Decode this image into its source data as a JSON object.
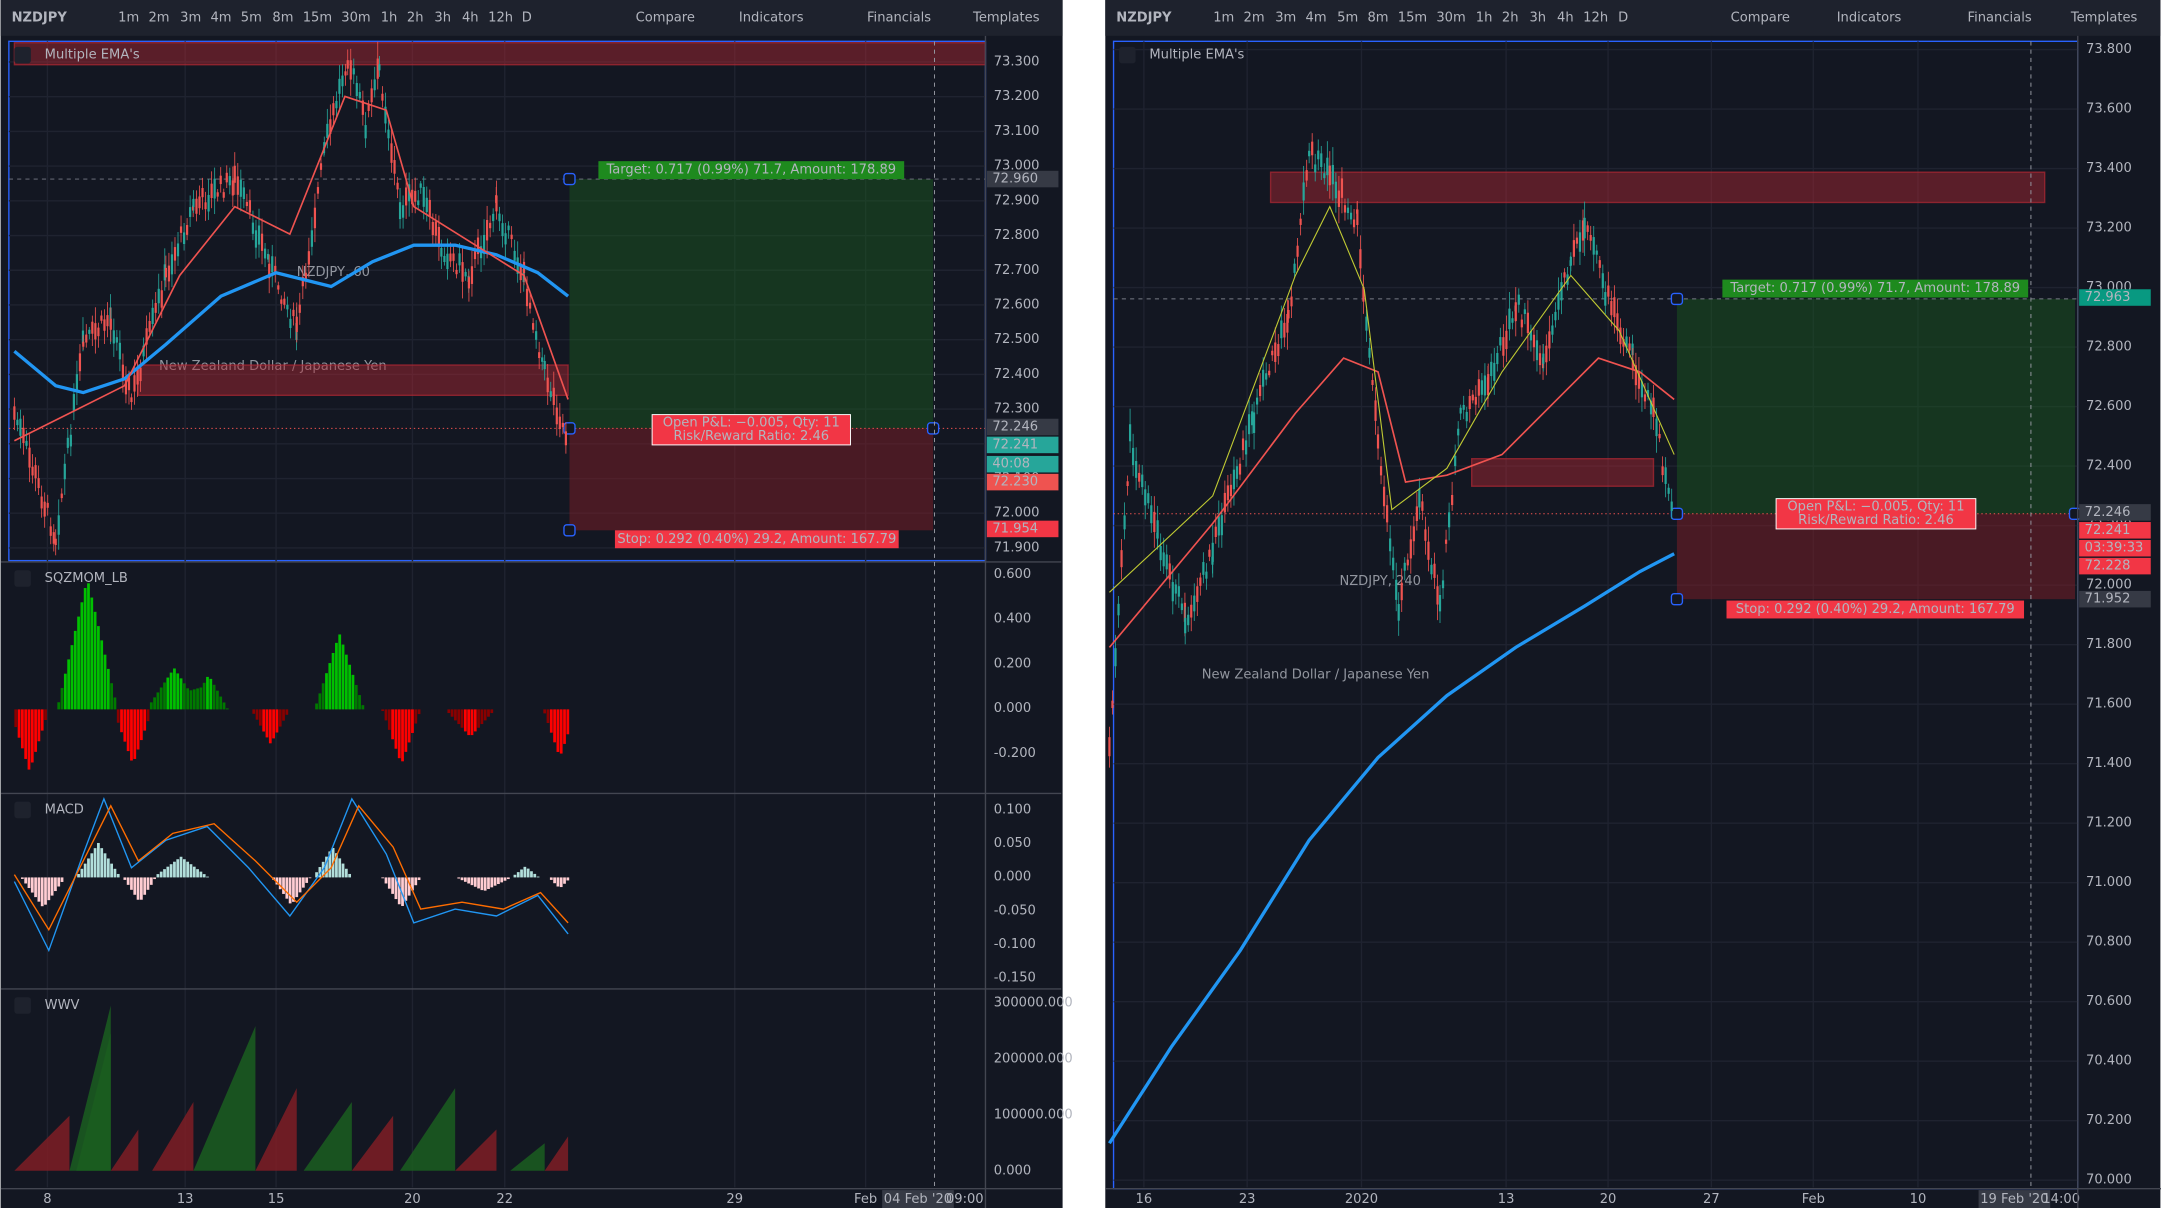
{
  "left": {
    "toolbar": {
      "symbol": "NZDJPY",
      "intervals": [
        "1m",
        "2m",
        "3m",
        "4m",
        "5m",
        "8m",
        "15m",
        "30m",
        "1h",
        "2h",
        "3h",
        "4h",
        "12h",
        "D"
      ],
      "active_interval": "1h",
      "buttons": [
        "Compare",
        "Indicators",
        "Financials",
        "Templates"
      ]
    },
    "main": {
      "label": "Multiple EMA's",
      "watermark": "NZDJPY, 60",
      "subtitle": "New Zealand Dollar / Japanese Yen",
      "price_ticks": [
        "73.300",
        "73.200",
        "73.100",
        "73.000",
        "72.900",
        "72.800",
        "72.700",
        "72.600",
        "72.500",
        "72.400",
        "72.300",
        "72.200",
        "72.100",
        "72.000",
        "71.900"
      ],
      "tags": [
        {
          "label": "72.960",
          "color": "#363a45"
        },
        {
          "label": "72.246",
          "color": "#363a45"
        },
        {
          "label": "72.241",
          "color": "#26a69a"
        },
        {
          "label": "40:08",
          "color": "#26a69a"
        },
        {
          "label": "72.230",
          "color": "#ef5350"
        },
        {
          "label": "71.954",
          "color": "#f23645"
        }
      ],
      "target": "Target: 0.717 (0.99%) 71.7, Amount: 178.89",
      "pnl": [
        "Open P&L: −0.005, Qty: 11",
        "Risk/Reward Ratio: 2.46"
      ],
      "stop": "Stop: 0.292 (0.40%) 29.2, Amount: 167.79"
    },
    "panels": [
      {
        "label": "SQZMOM_LB",
        "ticks": [
          "0.600",
          "0.400",
          "0.200",
          "0.000",
          "-0.200"
        ]
      },
      {
        "label": "MACD",
        "ticks": [
          "0.100",
          "0.050",
          "0.000",
          "-0.050",
          "-0.100",
          "-0.150"
        ]
      },
      {
        "label": "WWV",
        "ticks": [
          "300000.000",
          "200000.000",
          "100000.000",
          "0.000"
        ]
      }
    ],
    "dates": [
      "8",
      "13",
      "15",
      "20",
      "22",
      "29",
      "Feb"
    ],
    "crosshair_date": "04 Feb '20",
    "crosshair_time": "09:00"
  },
  "right": {
    "toolbar": {
      "symbol": "NZDJPY",
      "intervals": [
        "1m",
        "2m",
        "3m",
        "4m",
        "5m",
        "8m",
        "15m",
        "30m",
        "1h",
        "2h",
        "3h",
        "4h",
        "12h",
        "D"
      ],
      "active_interval": "4h",
      "buttons": [
        "Compare",
        "Indicators",
        "Financials",
        "Templates"
      ]
    },
    "main": {
      "label": "Multiple EMA's",
      "watermark": "NZDJPY, 240",
      "subtitle": "New Zealand Dollar / Japanese Yen",
      "price_ticks": [
        "73.800",
        "73.600",
        "73.400",
        "73.200",
        "73.000",
        "72.800",
        "72.600",
        "72.400",
        "72.200",
        "72.000",
        "71.800",
        "71.600",
        "71.400",
        "71.200",
        "71.000",
        "70.800",
        "70.600",
        "70.400",
        "70.200",
        "70.000"
      ],
      "tags": [
        {
          "label": "72.963",
          "color": "#089981"
        },
        {
          "label": "72.246",
          "color": "#363a45"
        },
        {
          "label": "72.241",
          "color": "#f23645"
        },
        {
          "label": "03:39:33",
          "color": "#f23645"
        },
        {
          "label": "72.228",
          "color": "#f23645"
        },
        {
          "label": "71.952",
          "color": "#363a45"
        }
      ],
      "target": "Target: 0.717 (0.99%) 71.7, Amount: 178.89",
      "pnl": [
        "Open P&L: −0.005, Qty: 11",
        "Risk/Reward Ratio: 2.46"
      ],
      "stop": "Stop: 0.292 (0.40%) 29.2, Amount: 167.79"
    },
    "dates": [
      "16",
      "23",
      "2020",
      "13",
      "20",
      "27",
      "Feb",
      "10"
    ],
    "crosshair_date": "19 Feb '20",
    "crosshair_time": "14:00"
  }
}
